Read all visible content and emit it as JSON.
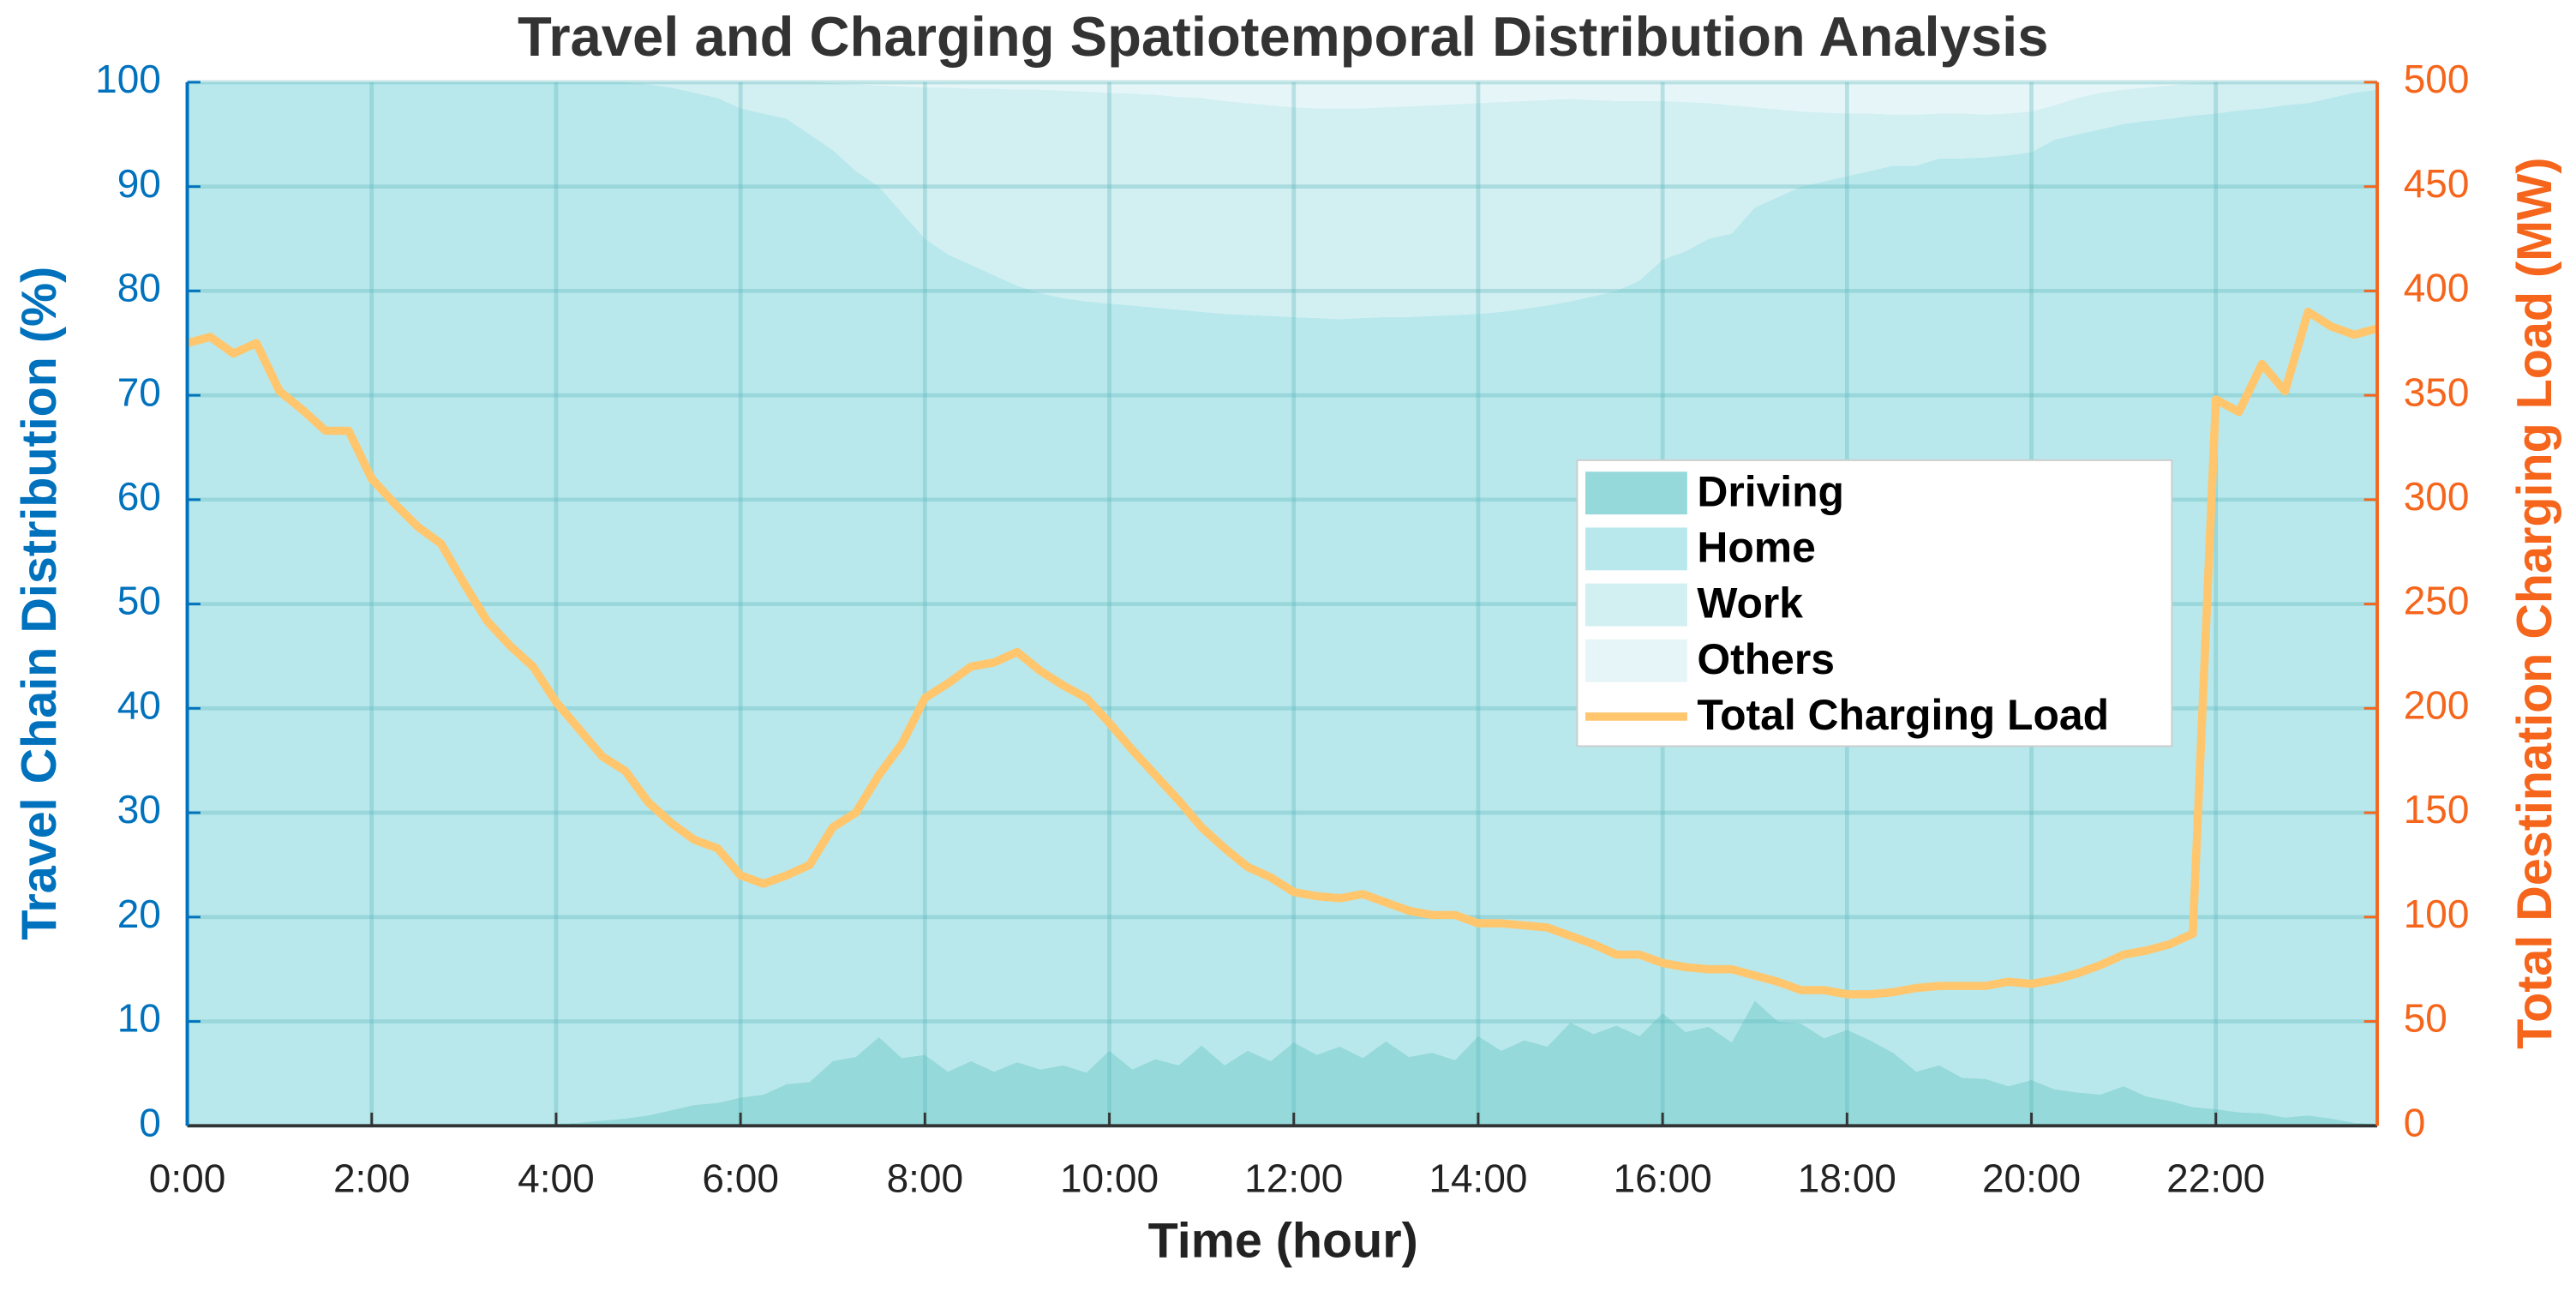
{
  "chart_data": {
    "type": "area",
    "stacked": true,
    "title": "Travel and Charging Spatiotemporal Distribution Analysis",
    "x_label": "Time (hour)",
    "y_label": "Travel Chain Distribution (%)",
    "y2_label": "Total Destination Charging Load (MW)",
    "x": [
      0,
      0.25,
      0.5,
      0.75,
      1,
      1.25,
      1.5,
      1.75,
      2,
      2.25,
      2.5,
      2.75,
      3,
      3.25,
      3.5,
      3.75,
      4,
      4.25,
      4.5,
      4.75,
      5,
      5.25,
      5.5,
      5.75,
      6,
      6.25,
      6.5,
      6.75,
      7,
      7.25,
      7.5,
      7.75,
      8,
      8.25,
      8.5,
      8.75,
      9,
      9.25,
      9.5,
      9.75,
      10,
      10.25,
      10.5,
      10.75,
      11,
      11.25,
      11.5,
      11.75,
      12,
      12.25,
      12.5,
      12.75,
      13,
      13.25,
      13.5,
      13.75,
      14,
      14.25,
      14.5,
      14.75,
      15,
      15.25,
      15.5,
      15.75,
      16,
      16.25,
      16.5,
      16.75,
      17,
      17.25,
      17.5,
      17.75,
      18,
      18.25,
      18.5,
      18.75,
      19,
      19.25,
      19.5,
      19.75,
      20,
      20.25,
      20.5,
      20.75,
      21,
      21.25,
      21.5,
      21.75,
      22,
      22.25,
      22.5,
      22.75,
      23,
      23.25,
      23.5,
      23.75
    ],
    "xlim": [
      0,
      23.75
    ],
    "xticks": [
      {
        "value": 0,
        "label": "0:00"
      },
      {
        "value": 2,
        "label": "2:00"
      },
      {
        "value": 4,
        "label": "4:00"
      },
      {
        "value": 6,
        "label": "6:00"
      },
      {
        "value": 8,
        "label": "8:00"
      },
      {
        "value": 10,
        "label": "10:00"
      },
      {
        "value": 12,
        "label": "12:00"
      },
      {
        "value": 14,
        "label": "14:00"
      },
      {
        "value": 16,
        "label": "16:00"
      },
      {
        "value": 18,
        "label": "18:00"
      },
      {
        "value": 20,
        "label": "20:00"
      },
      {
        "value": 22,
        "label": "22:00"
      }
    ],
    "ylim": [
      0,
      100
    ],
    "yticks": [
      0,
      10,
      20,
      30,
      40,
      50,
      60,
      70,
      80,
      90,
      100
    ],
    "y2lim": [
      0,
      500
    ],
    "y2ticks": [
      0,
      50,
      100,
      150,
      200,
      250,
      300,
      350,
      400,
      450,
      500
    ],
    "y_color": "#0072bd",
    "y2_color": "#f5651b",
    "grid": true,
    "legend": "center-right",
    "series": [
      {
        "name": "Driving",
        "color": "#95d9da",
        "values": [
          0,
          0,
          0,
          0,
          0,
          0,
          0,
          0,
          0,
          0,
          0,
          0,
          0,
          0,
          0,
          0,
          0.2,
          0.3,
          0.5,
          0.7,
          1,
          1.5,
          2,
          2.2,
          2.7,
          3,
          4,
          4.2,
          6.2,
          6.6,
          8.5,
          6.5,
          6.8,
          5.2,
          6.2,
          5.2,
          6.1,
          5.4,
          5.8,
          5.1,
          7.2,
          5.4,
          6.4,
          5.8,
          7.7,
          5.8,
          7.2,
          6.2,
          8,
          6.8,
          7.6,
          6.5,
          8.1,
          6.6,
          7,
          6.3,
          8.6,
          7.2,
          8.2,
          7.6,
          9.9,
          8.8,
          9.6,
          8.6,
          10.8,
          9,
          9.5,
          8,
          12,
          10,
          9.8,
          8.4,
          9.2,
          8.2,
          7,
          5.2,
          5.8,
          4.6,
          4.5,
          3.8,
          4.4,
          3.5,
          3.2,
          3,
          3.8,
          2.8,
          2.4,
          1.8,
          1.6,
          1.3,
          1.2,
          0.8,
          1,
          0.7,
          0.3,
          0.2
        ]
      },
      {
        "name": "Home",
        "color": "#b8e8ec",
        "values": [
          100,
          100,
          100,
          100,
          100,
          100,
          100,
          100,
          100,
          100,
          100,
          100,
          100,
          100,
          100,
          100,
          99.8,
          99.7,
          99.5,
          99.3,
          98.8,
          98,
          97,
          96.3,
          94.8,
          94,
          92.5,
          90.8,
          87.3,
          84.9,
          81.5,
          81,
          78.2,
          78.3,
          76.3,
          76.3,
          74.4,
          74.4,
          73.5,
          73.9,
          71.6,
          73.2,
          72,
          72.4,
          70.3,
          72,
          70.5,
          71.4,
          69.5,
          70.6,
          69.7,
          70.9,
          69.4,
          70.9,
          70.6,
          71.4,
          69.2,
          70.8,
          70.1,
          71,
          69.1,
          70.7,
          70.4,
          72.4,
          72.2,
          74.8,
          75.5,
          77.5,
          76,
          79,
          80.2,
          82.1,
          81.8,
          83.3,
          85,
          86.8,
          86.9,
          88.1,
          88.3,
          89.2,
          88.9,
          91,
          91.8,
          92.5,
          92.2,
          93.5,
          94.1,
          95,
          95.4,
          96,
          96.3,
          97,
          97,
          97.8,
          98.7,
          99.1
        ]
      },
      {
        "name": "Work",
        "color": "#d2eff2",
        "values": [
          0,
          0,
          0,
          0,
          0,
          0,
          0,
          0,
          0,
          0,
          0,
          0,
          0,
          0,
          0,
          0,
          0,
          0,
          0,
          0,
          0.2,
          0.5,
          1,
          1.5,
          2.5,
          3,
          3.5,
          5,
          6.4,
          8.3,
          9.7,
          12.1,
          14.5,
          16,
          16.9,
          17.9,
          18.8,
          19.5,
          19.9,
          20.1,
          20.2,
          20.3,
          20.4,
          20.4,
          20.5,
          20.4,
          20.3,
          20.2,
          20.1,
          20.1,
          20.2,
          20.1,
          20.1,
          20.2,
          20.2,
          20.2,
          20.2,
          20.1,
          19.9,
          19.7,
          19.4,
          18.8,
          18.2,
          17.2,
          15.2,
          14.3,
          13,
          12.3,
          9.6,
          8.4,
          7.2,
          6.6,
          6,
          5.5,
          4.9,
          4.9,
          4.3,
          4.3,
          4.1,
          4,
          3.9,
          3.3,
          3.5,
          3.5,
          3.3,
          3.2,
          3.2,
          3.1,
          3,
          2.7,
          2.5,
          2.2,
          2,
          1.5,
          1,
          0.7
        ]
      },
      {
        "name": "Others",
        "color": "#e6f6f8",
        "values": [
          0,
          0,
          0,
          0,
          0,
          0,
          0,
          0,
          0,
          0,
          0,
          0,
          0,
          0,
          0,
          0,
          0,
          0,
          0,
          0,
          0,
          0,
          0,
          0,
          0,
          0,
          0,
          0,
          0.1,
          0.2,
          0.3,
          0.4,
          0.5,
          0.5,
          0.6,
          0.6,
          0.7,
          0.7,
          0.8,
          0.9,
          1,
          1.1,
          1.2,
          1.4,
          1.5,
          1.8,
          2,
          2.2,
          2.4,
          2.5,
          2.5,
          2.5,
          2.4,
          2.3,
          2.2,
          2.1,
          2,
          1.9,
          1.8,
          1.7,
          1.6,
          1.7,
          1.8,
          1.8,
          1.8,
          1.9,
          2,
          2.2,
          2.4,
          2.6,
          2.8,
          2.9,
          3,
          3,
          3.1,
          3.1,
          3,
          3,
          3.1,
          3,
          2.8,
          2.2,
          1.5,
          1,
          0.7,
          0.5,
          0.3,
          0.1,
          0,
          0,
          0,
          0,
          0,
          0,
          0,
          0
        ]
      },
      {
        "name": "Total Charging Load",
        "color": "#ffc66e",
        "axis": "y2",
        "values": [
          375,
          378,
          370,
          375,
          352,
          343,
          333,
          333,
          310,
          298,
          287,
          279,
          260,
          242,
          230,
          220,
          203,
          190,
          177,
          170,
          155,
          145,
          137,
          133,
          120,
          116,
          120,
          125,
          143,
          150,
          168,
          183,
          205,
          212,
          220,
          222,
          227,
          218,
          211,
          205,
          193,
          180,
          168,
          156,
          143,
          133,
          124,
          119,
          112,
          110,
          109,
          111,
          107,
          103,
          101,
          101,
          97,
          97,
          96,
          95,
          91,
          87,
          82,
          82,
          78,
          76,
          75,
          75,
          72,
          69,
          65,
          65,
          63,
          63,
          64,
          66,
          67,
          67,
          67,
          69,
          68,
          70,
          73,
          77,
          82,
          84,
          87,
          92,
          348,
          342,
          365,
          352,
          390,
          383,
          379,
          382
        ]
      }
    ]
  }
}
